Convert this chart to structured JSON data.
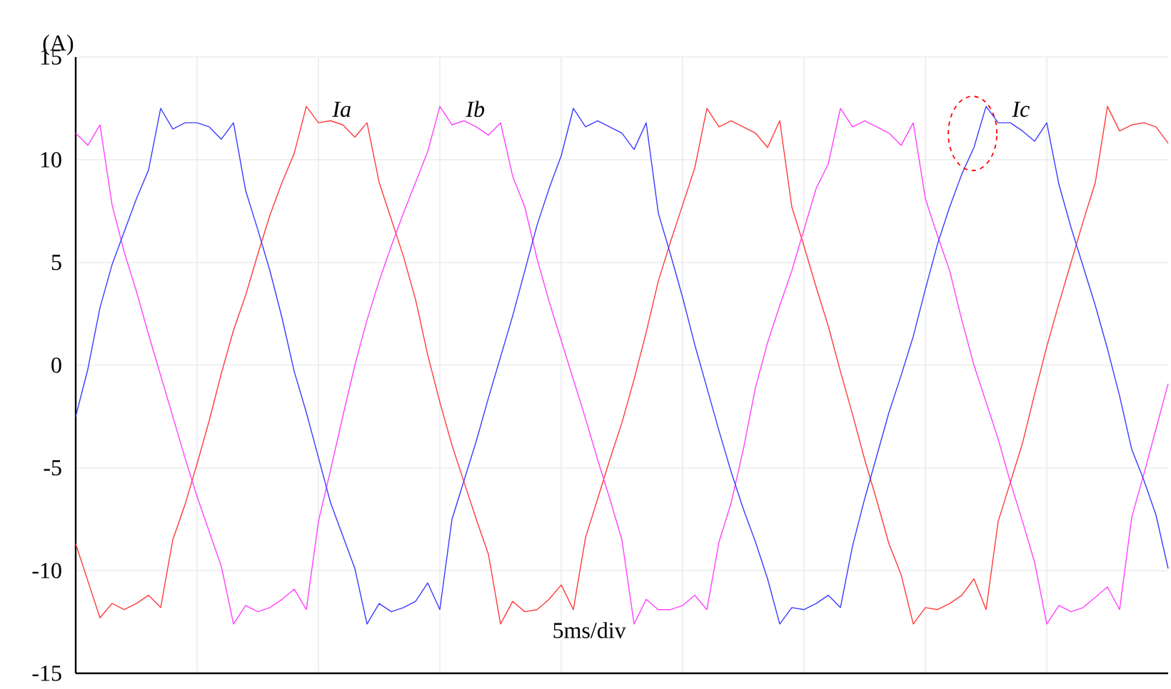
{
  "chart_data": {
    "type": "line",
    "ylabel": "(A)",
    "annotations": [
      "5ms/div"
    ],
    "categories": [
      null,
      null,
      null,
      null,
      null,
      null,
      null,
      null,
      null,
      null,
      null,
      null,
      null,
      null,
      null,
      null,
      null,
      null,
      null,
      null,
      null,
      null,
      null,
      null,
      null,
      null,
      null,
      null,
      null,
      null,
      null,
      null,
      null,
      null,
      null,
      null,
      null,
      null,
      null,
      null,
      null,
      null,
      null,
      null,
      null,
      null,
      null,
      null,
      null,
      null,
      null,
      null,
      null,
      null,
      null,
      null,
      null,
      null,
      null,
      null,
      null,
      null,
      null,
      null,
      null,
      null,
      null,
      null,
      null,
      null,
      null,
      null,
      null,
      null,
      null,
      null,
      null,
      null,
      null,
      null,
      null,
      null,
      null,
      null,
      null,
      null,
      null,
      null,
      null,
      null,
      null
    ],
    "ylim": [
      -15,
      15
    ],
    "yticks": [
      -15,
      -10,
      -5,
      0,
      5,
      10,
      15
    ],
    "grid": true,
    "legend": false,
    "marker": "none",
    "line_style": "solid",
    "series": [
      {
        "name": "Ia",
        "color": "#ff3b3b",
        "values": [
          -8.7,
          -10.5,
          -12.3,
          -11.6,
          -11.9,
          -11.6,
          -11.2,
          -11.8,
          -8.5,
          -6.8,
          -4.8,
          -2.7,
          -0.4,
          1.7,
          3.4,
          5.4,
          7.3,
          8.9,
          10.3,
          12.6,
          11.8,
          11.9,
          11.7,
          11.1,
          11.8,
          8.9,
          7.1,
          5.3,
          3.2,
          0.5,
          -1.8,
          -3.9,
          -5.7,
          -7.5,
          -9.2,
          -12.6,
          -11.5,
          -12.0,
          -11.9,
          -11.4,
          -10.7,
          -11.9,
          -8.4,
          -6.5,
          -4.6,
          -2.8,
          -0.7,
          1.6,
          4.1,
          6.0,
          7.8,
          9.6,
          12.5,
          11.6,
          11.9,
          11.6,
          11.3,
          10.6,
          11.9,
          7.7,
          5.8,
          3.8,
          1.9,
          -0.3,
          -2.4,
          -4.6,
          -6.6,
          -8.7,
          -10.2,
          -12.6,
          -11.8,
          -11.9,
          -11.6,
          -11.2,
          -10.4,
          -11.9,
          -7.6,
          -5.7,
          -3.8,
          -1.4,
          0.9,
          3.0,
          5.0,
          7.0,
          8.9,
          12.6,
          11.4,
          11.7,
          11.8,
          11.6,
          10.8
        ]
      },
      {
        "name": "Ib",
        "color": "#ff40ff",
        "values": [
          11.3,
          10.7,
          11.7,
          7.8,
          5.5,
          3.6,
          1.5,
          -0.5,
          -2.5,
          -4.5,
          -6.4,
          -8.1,
          -9.8,
          -12.6,
          -11.7,
          -12.0,
          -11.8,
          -11.4,
          -10.9,
          -11.9,
          -7.6,
          -5.1,
          -2.5,
          0.0,
          2.2,
          4.1,
          5.8,
          7.4,
          8.9,
          10.4,
          12.6,
          11.7,
          11.9,
          11.6,
          11.2,
          11.8,
          9.2,
          7.7,
          5.2,
          3.1,
          1.2,
          -0.7,
          -2.6,
          -4.6,
          -6.5,
          -8.5,
          -12.6,
          -11.4,
          -11.9,
          -11.9,
          -11.7,
          -11.2,
          -11.9,
          -8.6,
          -6.7,
          -4.1,
          -1.1,
          1.1,
          2.9,
          4.6,
          6.6,
          8.6,
          9.8,
          12.5,
          11.6,
          11.9,
          11.6,
          11.3,
          10.7,
          11.8,
          8.1,
          6.3,
          4.6,
          2.2,
          0.0,
          -1.8,
          -3.6,
          -5.7,
          -7.6,
          -9.6,
          -12.6,
          -11.7,
          -12.0,
          -11.8,
          -11.3,
          -10.8,
          -11.9,
          -7.4,
          -5.3,
          -3.1,
          -0.9
        ]
      },
      {
        "name": "Ic",
        "color": "#3b3bff",
        "values": [
          -2.5,
          -0.2,
          2.8,
          4.9,
          6.5,
          8.1,
          9.5,
          12.5,
          11.5,
          11.8,
          11.8,
          11.6,
          11.0,
          11.8,
          8.5,
          6.6,
          4.6,
          2.3,
          -0.3,
          -2.3,
          -4.5,
          -6.7,
          -8.3,
          -9.9,
          -12.6,
          -11.6,
          -12.0,
          -11.8,
          -11.5,
          -10.6,
          -11.9,
          -7.5,
          -5.6,
          -3.7,
          -1.6,
          0.4,
          2.4,
          4.6,
          6.8,
          8.6,
          10.2,
          12.5,
          11.6,
          11.9,
          11.6,
          11.3,
          10.5,
          11.8,
          7.4,
          5.4,
          3.3,
          1.0,
          -1.1,
          -3.2,
          -5.2,
          -7.0,
          -8.6,
          -10.4,
          -12.6,
          -11.8,
          -11.9,
          -11.6,
          -11.2,
          -11.8,
          -8.8,
          -6.5,
          -4.4,
          -2.3,
          -0.5,
          1.4,
          3.7,
          5.9,
          7.7,
          9.3,
          10.6,
          12.6,
          11.8,
          11.8,
          11.4,
          10.9,
          11.8,
          8.8,
          6.7,
          4.8,
          2.9,
          0.8,
          -1.5,
          -4.1,
          -5.6,
          -7.3,
          -9.9
        ]
      }
    ]
  }
}
